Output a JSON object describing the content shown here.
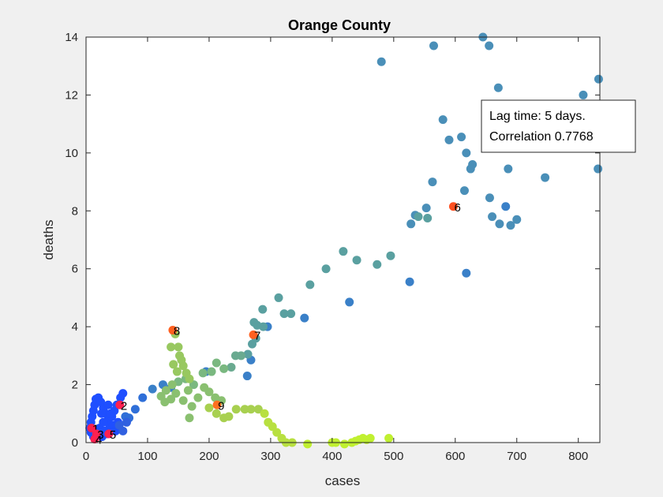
{
  "chart_data": {
    "type": "scatter",
    "title": "Orange County",
    "xlabel": "cases",
    "ylabel": "deaths",
    "xlim": [
      0,
      835
    ],
    "ylim": [
      0,
      14
    ],
    "xticks": [
      0,
      100,
      200,
      300,
      400,
      500,
      600,
      700,
      800
    ],
    "yticks": [
      0,
      2,
      4,
      6,
      8,
      10,
      12,
      14
    ],
    "annotation_lines": [
      "Lag time: 5 days.",
      "Correlation 0.7768"
    ],
    "annotation_position": "top-right",
    "grid": false,
    "points": [
      {
        "x": 6,
        "y": 0.5,
        "color": "#1f4fff"
      },
      {
        "x": 8,
        "y": 0.7,
        "color": "#1f4fff"
      },
      {
        "x": 10,
        "y": 0.9,
        "color": "#1f4fff"
      },
      {
        "x": 12,
        "y": 1.1,
        "color": "#1f4fff"
      },
      {
        "x": 14,
        "y": 1.3,
        "color": "#1f4fff"
      },
      {
        "x": 16,
        "y": 1.5,
        "color": "#1f4fff"
      },
      {
        "x": 20,
        "y": 1.55,
        "color": "#1f4fff"
      },
      {
        "x": 24,
        "y": 1.4,
        "color": "#1f4fff"
      },
      {
        "x": 28,
        "y": 1.2,
        "color": "#1f4fff"
      },
      {
        "x": 32,
        "y": 1.0,
        "color": "#1f4fff"
      },
      {
        "x": 36,
        "y": 0.8,
        "color": "#1f4fff"
      },
      {
        "x": 40,
        "y": 0.6,
        "color": "#1f4fff"
      },
      {
        "x": 18,
        "y": 0.3,
        "color": "#1f4fff"
      },
      {
        "x": 22,
        "y": 0.5,
        "color": "#1f4fff"
      },
      {
        "x": 26,
        "y": 0.2,
        "color": "#1f4fff"
      },
      {
        "x": 30,
        "y": 0.4,
        "color": "#1f4fff"
      },
      {
        "x": 34,
        "y": 0.3,
        "color": "#1f4fff"
      },
      {
        "x": 38,
        "y": 0.5,
        "color": "#1f4fff"
      },
      {
        "x": 42,
        "y": 0.9,
        "color": "#1f4fff"
      },
      {
        "x": 46,
        "y": 1.1,
        "color": "#1f4fff"
      },
      {
        "x": 50,
        "y": 1.3,
        "color": "#1f4fff"
      },
      {
        "x": 56,
        "y": 1.55,
        "color": "#1f4fff"
      },
      {
        "x": 60,
        "y": 1.7,
        "color": "#1f4fff"
      },
      {
        "x": 44,
        "y": 0.6,
        "color": "#1f4fff"
      },
      {
        "x": 48,
        "y": 0.4,
        "color": "#1f4fff"
      },
      {
        "x": 52,
        "y": 0.7,
        "color": "#1f4fff"
      },
      {
        "x": 12,
        "y": 0.2,
        "color": "#1f4fff"
      },
      {
        "x": 8,
        "y": 0.35,
        "color": "#1f4fff"
      },
      {
        "x": 28,
        "y": 0.7,
        "color": "#1f4fff"
      },
      {
        "x": 36,
        "y": 1.3,
        "color": "#1f4fff"
      },
      {
        "x": 40,
        "y": 1.0,
        "color": "#1f4fff"
      },
      {
        "x": 25,
        "y": 1.0,
        "color": "#1f4fff"
      },
      {
        "x": 64,
        "y": 0.9,
        "color": "#2f6fd8"
      },
      {
        "x": 70,
        "y": 0.85,
        "color": "#2f6fd8"
      },
      {
        "x": 80,
        "y": 1.15,
        "color": "#2f6fd8"
      },
      {
        "x": 92,
        "y": 1.55,
        "color": "#2f6fd8"
      },
      {
        "x": 108,
        "y": 1.85,
        "color": "#3a80c8"
      },
      {
        "x": 125,
        "y": 2.0,
        "color": "#3a80c8"
      },
      {
        "x": 138,
        "y": 1.9,
        "color": "#3a80c8"
      },
      {
        "x": 195,
        "y": 2.45,
        "color": "#3a80c8"
      },
      {
        "x": 262,
        "y": 2.3,
        "color": "#3a80c8"
      },
      {
        "x": 268,
        "y": 2.85,
        "color": "#3a80c8"
      },
      {
        "x": 295,
        "y": 4.0,
        "color": "#3a80c8"
      },
      {
        "x": 355,
        "y": 4.3,
        "color": "#3a80c8"
      },
      {
        "x": 428,
        "y": 4.85,
        "color": "#3a80c8"
      },
      {
        "x": 526,
        "y": 5.55,
        "color": "#3a80c8"
      },
      {
        "x": 618,
        "y": 5.85,
        "color": "#3a80c8"
      },
      {
        "x": 682,
        "y": 8.15,
        "color": "#3a80c8"
      },
      {
        "x": 700,
        "y": 7.7,
        "color": "#4a8fb8"
      },
      {
        "x": 690,
        "y": 7.5,
        "color": "#4a8fb8"
      },
      {
        "x": 672,
        "y": 7.55,
        "color": "#4a8fb8"
      },
      {
        "x": 660,
        "y": 7.8,
        "color": "#4a8fb8"
      },
      {
        "x": 615,
        "y": 8.7,
        "color": "#4a8fb8"
      },
      {
        "x": 625,
        "y": 9.45,
        "color": "#4a8fb8"
      },
      {
        "x": 628,
        "y": 9.6,
        "color": "#4a8fb8"
      },
      {
        "x": 618,
        "y": 10.0,
        "color": "#4a8fb8"
      },
      {
        "x": 610,
        "y": 10.55,
        "color": "#4a8fb8"
      },
      {
        "x": 590,
        "y": 10.45,
        "color": "#4a8fb8"
      },
      {
        "x": 580,
        "y": 11.15,
        "color": "#4a8fb8"
      },
      {
        "x": 563,
        "y": 9.0,
        "color": "#4a8fb8"
      },
      {
        "x": 553,
        "y": 8.1,
        "color": "#4a8fb8"
      },
      {
        "x": 535,
        "y": 7.85,
        "color": "#4a8fb8"
      },
      {
        "x": 528,
        "y": 7.55,
        "color": "#4a8fb8"
      },
      {
        "x": 480,
        "y": 13.15,
        "color": "#4a8fb8"
      },
      {
        "x": 565,
        "y": 13.7,
        "color": "#4a8fb8"
      },
      {
        "x": 645,
        "y": 14.0,
        "color": "#4a8fb8"
      },
      {
        "x": 655,
        "y": 13.7,
        "color": "#4a8fb8"
      },
      {
        "x": 670,
        "y": 12.25,
        "color": "#4a8fb8"
      },
      {
        "x": 808,
        "y": 12.0,
        "color": "#4a8fb8"
      },
      {
        "x": 833,
        "y": 12.55,
        "color": "#4a8fb8"
      },
      {
        "x": 832,
        "y": 9.45,
        "color": "#4a8fb8"
      },
      {
        "x": 746,
        "y": 9.15,
        "color": "#4a8fb8"
      },
      {
        "x": 686,
        "y": 9.45,
        "color": "#4a8fb8"
      },
      {
        "x": 656,
        "y": 8.45,
        "color": "#4a8fb8"
      },
      {
        "x": 540,
        "y": 7.8,
        "color": "#5aa0a0"
      },
      {
        "x": 555,
        "y": 7.75,
        "color": "#5aa0a0"
      },
      {
        "x": 495,
        "y": 6.45,
        "color": "#5aa0a0"
      },
      {
        "x": 473,
        "y": 6.15,
        "color": "#5aa0a0"
      },
      {
        "x": 440,
        "y": 6.3,
        "color": "#5aa0a0"
      },
      {
        "x": 418,
        "y": 6.6,
        "color": "#5aa0a0"
      },
      {
        "x": 390,
        "y": 6.0,
        "color": "#5aa0a0"
      },
      {
        "x": 364,
        "y": 5.45,
        "color": "#5aa0a0"
      },
      {
        "x": 313,
        "y": 5.0,
        "color": "#5aa0a0"
      },
      {
        "x": 287,
        "y": 4.6,
        "color": "#5aa0a0"
      },
      {
        "x": 322,
        "y": 4.45,
        "color": "#5aa0a0"
      },
      {
        "x": 333,
        "y": 4.45,
        "color": "#5aa0a0"
      },
      {
        "x": 273,
        "y": 4.15,
        "color": "#5aa0a0"
      },
      {
        "x": 278,
        "y": 4.05,
        "color": "#5aa0a0"
      },
      {
        "x": 288,
        "y": 4.0,
        "color": "#5aa0a0"
      },
      {
        "x": 276,
        "y": 3.6,
        "color": "#5aa0a0"
      },
      {
        "x": 270,
        "y": 3.4,
        "color": "#5aa0a0"
      },
      {
        "x": 263,
        "y": 3.05,
        "color": "#5aa0a0"
      },
      {
        "x": 252,
        "y": 3.0,
        "color": "#6aaa90"
      },
      {
        "x": 243,
        "y": 3.0,
        "color": "#6aaa90"
      },
      {
        "x": 236,
        "y": 2.6,
        "color": "#6aaa90"
      },
      {
        "x": 224,
        "y": 2.55,
        "color": "#7ab880"
      },
      {
        "x": 212,
        "y": 2.75,
        "color": "#7ab880"
      },
      {
        "x": 204,
        "y": 2.45,
        "color": "#7ab880"
      },
      {
        "x": 190,
        "y": 2.4,
        "color": "#7ab880"
      },
      {
        "x": 175,
        "y": 2.0,
        "color": "#7ab880"
      },
      {
        "x": 162,
        "y": 2.2,
        "color": "#7ab880"
      },
      {
        "x": 150,
        "y": 2.1,
        "color": "#7ab880"
      },
      {
        "x": 140,
        "y": 2.0,
        "color": "#8ac070"
      },
      {
        "x": 130,
        "y": 1.8,
        "color": "#8ac070"
      },
      {
        "x": 122,
        "y": 1.6,
        "color": "#8ac070"
      },
      {
        "x": 128,
        "y": 1.4,
        "color": "#8ac070"
      },
      {
        "x": 138,
        "y": 1.5,
        "color": "#8ac070"
      },
      {
        "x": 146,
        "y": 1.7,
        "color": "#8ac070"
      },
      {
        "x": 158,
        "y": 1.45,
        "color": "#8ac070"
      },
      {
        "x": 166,
        "y": 1.8,
        "color": "#8ac070"
      },
      {
        "x": 172,
        "y": 1.25,
        "color": "#8ac070"
      },
      {
        "x": 182,
        "y": 1.55,
        "color": "#8ac070"
      },
      {
        "x": 192,
        "y": 1.9,
        "color": "#8ac070"
      },
      {
        "x": 200,
        "y": 1.75,
        "color": "#8ac070"
      },
      {
        "x": 210,
        "y": 1.55,
        "color": "#8ac070"
      },
      {
        "x": 220,
        "y": 1.45,
        "color": "#8ac070"
      },
      {
        "x": 168,
        "y": 0.85,
        "color": "#8ac070"
      },
      {
        "x": 150,
        "y": 3.3,
        "color": "#98c860"
      },
      {
        "x": 138,
        "y": 3.3,
        "color": "#98c860"
      },
      {
        "x": 145,
        "y": 3.75,
        "color": "#98c860"
      },
      {
        "x": 152,
        "y": 3.0,
        "color": "#98c860"
      },
      {
        "x": 158,
        "y": 2.65,
        "color": "#98c860"
      },
      {
        "x": 163,
        "y": 2.4,
        "color": "#98c860"
      },
      {
        "x": 168,
        "y": 2.2,
        "color": "#98c860"
      },
      {
        "x": 148,
        "y": 2.45,
        "color": "#98c860"
      },
      {
        "x": 155,
        "y": 2.85,
        "color": "#98c860"
      },
      {
        "x": 142,
        "y": 2.7,
        "color": "#98c860"
      },
      {
        "x": 200,
        "y": 1.2,
        "color": "#a8d050"
      },
      {
        "x": 212,
        "y": 1.0,
        "color": "#a8d050"
      },
      {
        "x": 224,
        "y": 0.85,
        "color": "#a8d050"
      },
      {
        "x": 232,
        "y": 0.9,
        "color": "#a8d050"
      },
      {
        "x": 244,
        "y": 1.15,
        "color": "#a8d050"
      },
      {
        "x": 258,
        "y": 1.15,
        "color": "#a8d050"
      },
      {
        "x": 268,
        "y": 1.15,
        "color": "#a8d050"
      },
      {
        "x": 280,
        "y": 1.15,
        "color": "#a8d050"
      },
      {
        "x": 290,
        "y": 1.0,
        "color": "#b8e040"
      },
      {
        "x": 296,
        "y": 0.7,
        "color": "#b8e040"
      },
      {
        "x": 303,
        "y": 0.55,
        "color": "#b8e040"
      },
      {
        "x": 310,
        "y": 0.35,
        "color": "#b8e040"
      },
      {
        "x": 318,
        "y": 0.15,
        "color": "#b8e040"
      },
      {
        "x": 325,
        "y": 0.0,
        "color": "#b8e040"
      },
      {
        "x": 335,
        "y": 0.0,
        "color": "#b8e040"
      },
      {
        "x": 360,
        "y": -0.05,
        "color": "#c0f030"
      },
      {
        "x": 400,
        "y": 0.0,
        "color": "#c0f030"
      },
      {
        "x": 406,
        "y": 0.0,
        "color": "#c0f030"
      },
      {
        "x": 420,
        "y": -0.05,
        "color": "#c0f030"
      },
      {
        "x": 432,
        "y": 0.0,
        "color": "#c0f030"
      },
      {
        "x": 438,
        "y": 0.05,
        "color": "#c0f030"
      },
      {
        "x": 444,
        "y": 0.1,
        "color": "#c0f030"
      },
      {
        "x": 450,
        "y": 0.15,
        "color": "#c0f030"
      },
      {
        "x": 456,
        "y": 0.1,
        "color": "#c0f030"
      },
      {
        "x": 462,
        "y": 0.15,
        "color": "#c0f030"
      },
      {
        "x": 492,
        "y": 0.15,
        "color": "#c0f030"
      },
      {
        "x": 54,
        "y": 0.6,
        "color": "#3060e0"
      },
      {
        "x": 60,
        "y": 0.4,
        "color": "#3060e0"
      },
      {
        "x": 66,
        "y": 0.7,
        "color": "#3060e0"
      }
    ],
    "labeled_points": [
      {
        "label": "1",
        "x": 9,
        "y": 0.5,
        "color": "#ff2050"
      },
      {
        "label": "2",
        "x": 55,
        "y": 1.3,
        "color": "#ff2050"
      },
      {
        "label": "3",
        "x": 17,
        "y": 0.3,
        "color": "#ff2050"
      },
      {
        "label": "4",
        "x": 14,
        "y": 0.12,
        "color": "#ff2050"
      },
      {
        "label": "5",
        "x": 37,
        "y": 0.3,
        "color": "#ff2050"
      },
      {
        "label": "6",
        "x": 597,
        "y": 8.15,
        "color": "#ff5020"
      },
      {
        "label": "7",
        "x": 272,
        "y": 3.72,
        "color": "#ff6020"
      },
      {
        "label": "8",
        "x": 141,
        "y": 3.88,
        "color": "#ff6020"
      },
      {
        "label": "9",
        "x": 213,
        "y": 1.3,
        "color": "#ff7020"
      }
    ]
  }
}
